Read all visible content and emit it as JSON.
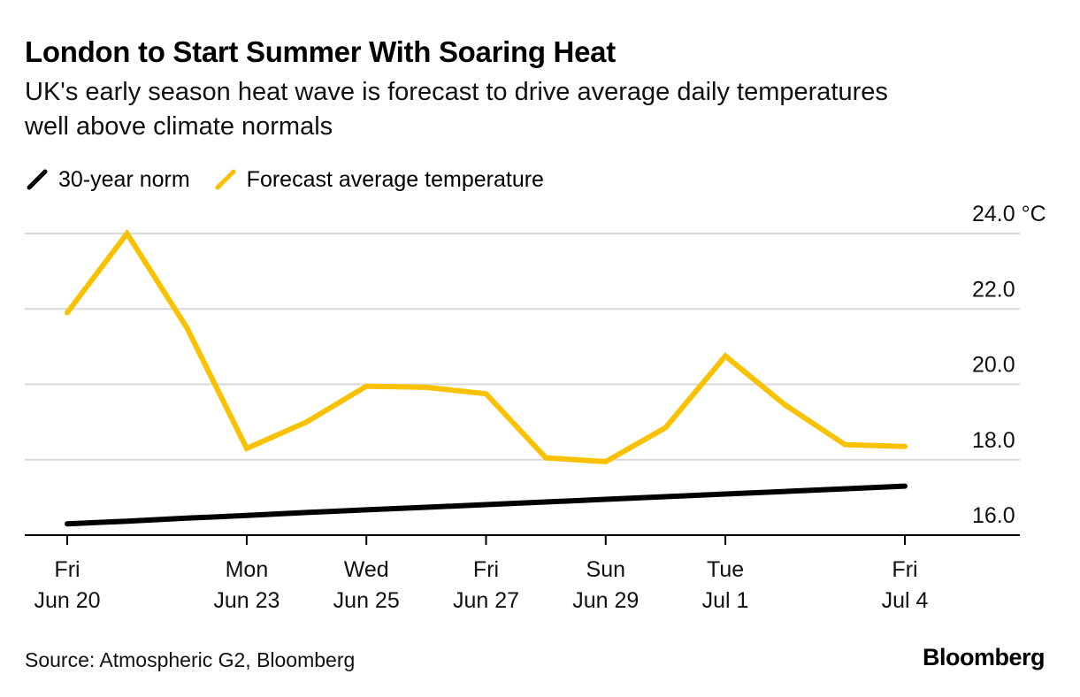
{
  "header": {
    "title": "London to Start Summer With Soaring Heat",
    "subtitle": "UK's early season heat wave is forecast to drive average daily temperatures well above climate normals"
  },
  "legend": {
    "items": [
      {
        "label": "30-year norm",
        "color": "#000000",
        "icon": "diagonal-line-icon"
      },
      {
        "label": "Forecast average temperature",
        "color": "#F8C200",
        "icon": "diagonal-line-icon"
      }
    ]
  },
  "footer": {
    "source": "Source: Atmospheric G2, Bloomberg",
    "logo": "Bloomberg"
  },
  "colors": {
    "norm": "#000000",
    "forecast": "#F8C200",
    "grid": "#d9d9d9",
    "axis": "#000000"
  },
  "chart_data": {
    "type": "line",
    "x": [
      "2025-06-20",
      "2025-06-21",
      "2025-06-22",
      "2025-06-23",
      "2025-06-24",
      "2025-06-25",
      "2025-06-26",
      "2025-06-27",
      "2025-06-28",
      "2025-06-29",
      "2025-06-30",
      "2025-07-01",
      "2025-07-02",
      "2025-07-03",
      "2025-07-04"
    ],
    "series": [
      {
        "name": "30-year norm",
        "color": "#000000",
        "values": [
          16.3,
          16.37,
          16.45,
          16.52,
          16.6,
          16.67,
          16.74,
          16.81,
          16.88,
          16.95,
          17.02,
          17.09,
          17.16,
          17.23,
          17.3
        ]
      },
      {
        "name": "Forecast average temperature",
        "color": "#F8C200",
        "values": [
          21.9,
          24.0,
          21.5,
          18.3,
          19.0,
          19.95,
          19.92,
          19.75,
          18.05,
          17.95,
          18.85,
          20.75,
          19.45,
          18.4,
          18.35
        ]
      }
    ],
    "ylim": [
      16.0,
      24.0
    ],
    "yticks": [
      {
        "value": 24.0,
        "label": "24.0 °C"
      },
      {
        "value": 22.0,
        "label": "22.0"
      },
      {
        "value": 20.0,
        "label": "20.0"
      },
      {
        "value": 18.0,
        "label": "18.0"
      },
      {
        "value": 16.0,
        "label": "16.0"
      }
    ],
    "xticks": [
      {
        "index": 0,
        "day": "Fri",
        "date": "Jun 20"
      },
      {
        "index": 3,
        "day": "Mon",
        "date": "Jun 23"
      },
      {
        "index": 5,
        "day": "Wed",
        "date": "Jun 25"
      },
      {
        "index": 7,
        "day": "Fri",
        "date": "Jun 27"
      },
      {
        "index": 9,
        "day": "Sun",
        "date": "Jun 29"
      },
      {
        "index": 11,
        "day": "Tue",
        "date": "Jul 1"
      },
      {
        "index": 14,
        "day": "Fri",
        "date": "Jul 4"
      }
    ],
    "title": "London to Start Summer With Soaring Heat",
    "xlabel": "",
    "ylabel": "",
    "grid": true,
    "legend_position": "top-left",
    "y_axis_side": "right"
  }
}
